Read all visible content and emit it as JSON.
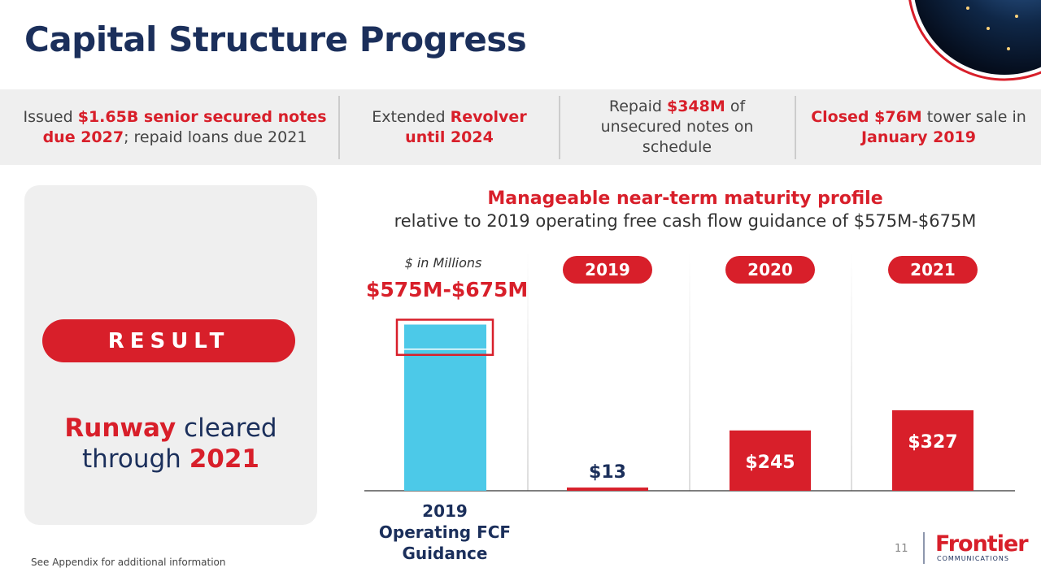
{
  "title": "Capital Structure Progress",
  "highlights": [
    [
      {
        "text": "Issued "
      },
      {
        "text": "$1.65B senior secured notes due 2027",
        "em": true
      },
      {
        "text": "; repaid loans due 2021"
      }
    ],
    [
      {
        "text": "Extended "
      },
      {
        "text": "Revolver until 2024",
        "em": true
      }
    ],
    [
      {
        "text": "Repaid "
      },
      {
        "text": "$348M",
        "em": true
      },
      {
        "text": " of unsecured notes on schedule"
      }
    ],
    [
      {
        "text": "Closed $76M",
        "em": true
      },
      {
        "text": " tower sale in "
      },
      {
        "text": "January 2019",
        "em": true
      }
    ]
  ],
  "result": {
    "badge": "RESULT",
    "text": [
      {
        "text": "Runway",
        "em": true
      },
      {
        "text": " cleared through "
      },
      {
        "text": "2021",
        "em": true
      }
    ]
  },
  "chart_data": {
    "type": "bar",
    "title": "Manageable near-term maturity profile",
    "subtitle": "relative to 2019 operating free cash flow guidance of $575M-$675M",
    "unit_note": "$ in Millions",
    "guidance": {
      "category": "2019 Operating FCF Guidance",
      "low": 575,
      "high": 675,
      "label": "$575M-$675M",
      "color": "#4cc9e8"
    },
    "categories": [
      "2019",
      "2020",
      "2021"
    ],
    "values": [
      13,
      245,
      327
    ],
    "value_labels": [
      "$13",
      "$245",
      "$327"
    ],
    "color": "#d81f2a"
  },
  "footer": {
    "note": "See Appendix for additional information",
    "page": "11",
    "brand": "Frontier",
    "brand_sub": "COMMUNICATIONS"
  }
}
